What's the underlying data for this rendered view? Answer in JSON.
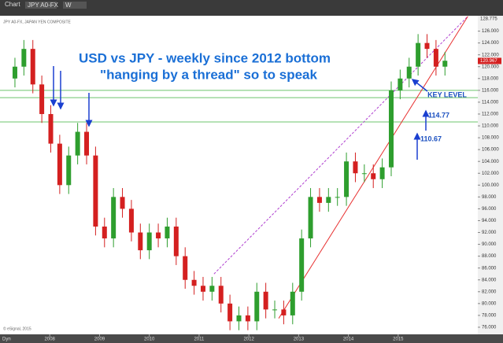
{
  "toolbar": {
    "window": "Chart",
    "symbol": "JPY A0-FX",
    "interval": "W"
  },
  "chart_data": {
    "type": "candlestick",
    "subtitle": "JPY A0-FX, JAPAN YEN COMPOSITE",
    "title": "USD vs JPY - weekly since 2012 bottom",
    "title2": "\"hanging by a thread\" so to speak",
    "annotations": [
      "KEY LEVEL",
      "114.77",
      "110.67"
    ],
    "footer": "© eSignal, 2015",
    "corner": "Dyn",
    "x": [
      2007.3,
      2007.48,
      2007.66,
      2007.84,
      2008.02,
      2008.2,
      2008.38,
      2008.56,
      2008.74,
      2008.92,
      2009.1,
      2009.28,
      2009.46,
      2009.64,
      2009.82,
      2010.0,
      2010.18,
      2010.36,
      2010.54,
      2010.72,
      2010.9,
      2011.08,
      2011.26,
      2011.44,
      2011.62,
      2011.8,
      2011.98,
      2012.16,
      2012.34,
      2012.52,
      2012.7,
      2012.88,
      2013.06,
      2013.24,
      2013.42,
      2013.6,
      2013.78,
      2013.96,
      2014.14,
      2014.32,
      2014.5,
      2014.68,
      2014.86,
      2015.04,
      2015.22,
      2015.4,
      2015.58,
      2015.76,
      2015.94
    ],
    "open": [
      118,
      120,
      123,
      117,
      112,
      107,
      100,
      105,
      109,
      105,
      93,
      91,
      98,
      96,
      92,
      89,
      92,
      91,
      93,
      88,
      84,
      83,
      82,
      83,
      80,
      77,
      78,
      77,
      82,
      79,
      79,
      78,
      82,
      91,
      98,
      97,
      98,
      98,
      104,
      102,
      102,
      101,
      103,
      116,
      118,
      120,
      124,
      123,
      120
    ],
    "high": [
      121.5,
      124.5,
      124.5,
      118.5,
      113.5,
      108.5,
      106.5,
      110.5,
      110.5,
      106.5,
      94.5,
      99.5,
      99.5,
      97.5,
      93.5,
      93.5,
      93.5,
      94.5,
      94.5,
      89.5,
      85.5,
      84.5,
      84.5,
      84.5,
      81.5,
      79.5,
      79.5,
      83.5,
      83.5,
      80.5,
      80.5,
      83.5,
      92.5,
      99.5,
      99.5,
      99.5,
      99.5,
      105.5,
      105.5,
      103.5,
      103.5,
      104.5,
      117.5,
      119.5,
      121.5,
      125.5,
      125.5,
      124.5,
      122.5
    ],
    "low": [
      116.5,
      118.5,
      115.5,
      110.5,
      105.5,
      98.5,
      98.5,
      103.5,
      103.5,
      91.5,
      89.5,
      89.5,
      94.5,
      90.5,
      87.5,
      87.5,
      89.5,
      89.5,
      86.5,
      82.5,
      81.5,
      80.5,
      80.5,
      78.5,
      75.5,
      75.5,
      75.5,
      75.5,
      77.5,
      77.5,
      76.5,
      76.5,
      80.5,
      89.5,
      95.5,
      95.5,
      96.5,
      96.5,
      100.5,
      100.5,
      99.5,
      99.5,
      101.5,
      114.5,
      116.5,
      118.5,
      121.5,
      118.5,
      118.5
    ],
    "close": [
      120,
      123,
      117,
      112,
      107,
      100,
      105,
      109,
      105,
      93,
      91,
      98,
      96,
      92,
      89,
      92,
      91,
      93,
      88,
      84,
      83,
      82,
      83,
      80,
      77,
      78,
      77,
      82,
      79,
      79,
      78,
      82,
      91,
      98,
      97,
      98,
      98,
      104,
      102,
      102,
      101,
      103,
      116,
      118,
      120,
      124,
      123,
      120,
      121
    ],
    "up_color": "#2e9e2e",
    "down_color": "#d42020",
    "hlines": [
      116.0,
      114.77,
      110.67
    ],
    "hline_color": "#6cc46c",
    "trendlines": [
      {
        "x": [
          2011.3,
          2016.4
        ],
        "y": [
          85,
          128.5
        ],
        "color": "#b040d0",
        "dashed": true
      },
      {
        "x": [
          2012.6,
          2016.4
        ],
        "y": [
          77.5,
          128.5
        ],
        "color": "#e83030",
        "dashed": false
      }
    ],
    "last_price": 120.967,
    "axis_high": 128.775,
    "xlim": [
      2007.0,
      2016.6
    ],
    "xticks": [
      2008,
      2009,
      2010,
      2011,
      2012,
      2013,
      2014,
      2015
    ],
    "ylim": [
      74.8,
      128.6
    ],
    "yticks": [
      {
        "value": 76,
        "label": "76.000"
      },
      {
        "value": 78,
        "label": "78.000"
      },
      {
        "value": 80,
        "label": "80.000"
      },
      {
        "value": 82,
        "label": "82.000"
      },
      {
        "value": 84,
        "label": "84.000"
      },
      {
        "value": 86,
        "label": "86.000"
      },
      {
        "value": 88,
        "label": "88.000"
      },
      {
        "value": 90,
        "label": "90.000"
      },
      {
        "value": 92,
        "label": "92.000"
      },
      {
        "value": 94,
        "label": "94.000"
      },
      {
        "value": 96,
        "label": "96.000"
      },
      {
        "value": 98,
        "label": "98.000"
      },
      {
        "value": 100,
        "label": "100.000"
      },
      {
        "value": 102,
        "label": "102.000"
      },
      {
        "value": 104,
        "label": "104.000"
      },
      {
        "value": 106,
        "label": "106.000"
      },
      {
        "value": 108,
        "label": "108.000"
      },
      {
        "value": 110,
        "label": "110.000"
      },
      {
        "value": 112,
        "label": "112.000"
      },
      {
        "value": 114,
        "label": "114.000"
      },
      {
        "value": 116,
        "label": "116.000"
      },
      {
        "value": 118,
        "label": "118.000"
      },
      {
        "value": 120,
        "label": "120.000"
      },
      {
        "value": 122,
        "label": "122.000"
      },
      {
        "value": 124,
        "label": "124.000"
      },
      {
        "value": 126,
        "label": "126.000"
      }
    ]
  }
}
